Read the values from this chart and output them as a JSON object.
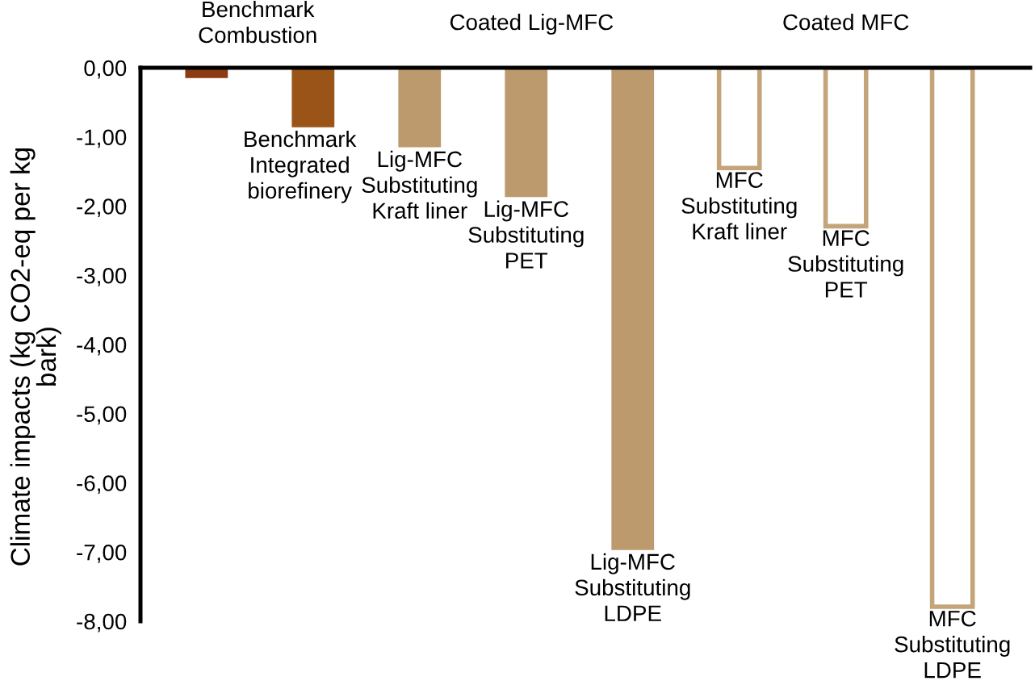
{
  "chart_data": {
    "type": "bar",
    "ylabel": "Climate impacts (kg CO2-eq per kg\nbark)",
    "categories": [
      null,
      "Benchmark\nIntegrated\nbiorefinery",
      "Lig-MFC\nSubstituting\nKraft liner",
      "Lig-MFC\nSubstituting\nPET",
      "Lig-MFC\nSubstituting\nLDPE",
      "MFC\nSubstituting\nKraft liner",
      "MFC\nSubstituting\nPET",
      "MFC\nSubstituting\nLDPE"
    ],
    "series": [
      {
        "values": [
          -0.15,
          -0.86,
          -1.15,
          -1.87,
          -6.97,
          null,
          null,
          null
        ],
        "colors": [
          "#8c3b13",
          "#9b5418",
          "#bc9a6d",
          "#bc9a6d",
          "#bc9a6d",
          null,
          null,
          null
        ]
      },
      {
        "values": [
          null,
          null,
          null,
          null,
          null,
          -1.45,
          -2.29,
          -7.79
        ],
        "color": "#c4a57a"
      }
    ],
    "ylim": [
      -8,
      0
    ],
    "yticks": [
      {
        "value": 0,
        "label": "0,00"
      },
      {
        "value": -1,
        "label": "-1,00"
      },
      {
        "value": -2,
        "label": "-2,00"
      },
      {
        "value": -3,
        "label": "-3,00"
      },
      {
        "value": -4,
        "label": "-4,00"
      },
      {
        "value": -5,
        "label": "-5,00"
      },
      {
        "value": -6,
        "label": "-6,00"
      },
      {
        "value": -7,
        "label": "-7,00"
      },
      {
        "value": -8,
        "label": "-8,00"
      }
    ],
    "annotations": [
      "Benchmark\nCombustion",
      "Coated Lig-MFC",
      "Coated MFC"
    ],
    "grid": false,
    "legend": false
  }
}
